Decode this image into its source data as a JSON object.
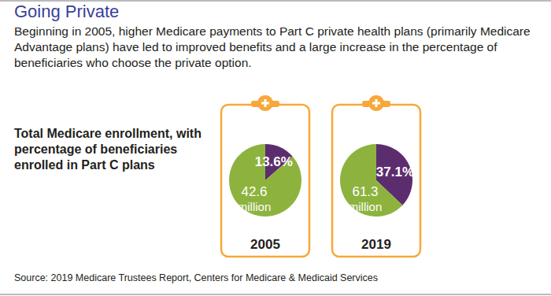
{
  "title": "Going Private",
  "subtitle": "Beginning in 2005, higher Medicare payments to Part C private health plans (primarily Medicare Advantage plans) have led to improved benefits and a large increase in the percentage of beneficiaries who choose the private option.",
  "chart_label": "Total Medicare enrollment, with percentage of beneficiaries enrolled in Part C plans",
  "source": "Source: 2019 Medicare Trustees Report, Centers for Medicare & Medicaid Services",
  "chart_data": [
    {
      "type": "pie",
      "title": "2005",
      "categories": [
        null,
        null
      ],
      "values": [
        13.6,
        86.4
      ],
      "value_labels": [
        "13.6%",
        null
      ],
      "colors": [
        "#5c2d6e",
        "#8db33e"
      ],
      "data_labels": true,
      "total": 42.6,
      "total_unit": "million"
    },
    {
      "type": "pie",
      "title": "2019",
      "categories": [
        null,
        null
      ],
      "values": [
        37.1,
        62.9
      ],
      "value_labels": [
        "37.1%",
        null
      ],
      "colors": [
        "#5c2d6e",
        "#8db33e"
      ],
      "data_labels": true,
      "total": 61.3,
      "total_unit": "million"
    }
  ]
}
